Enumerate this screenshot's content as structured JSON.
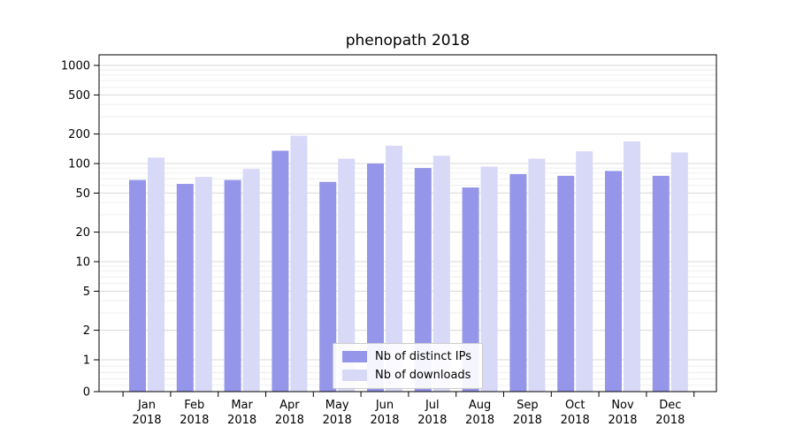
{
  "chart_data": {
    "type": "bar",
    "title": "phenopath 2018",
    "categories": [
      "Jan",
      "Feb",
      "Mar",
      "Apr",
      "May",
      "Jun",
      "Jul",
      "Aug",
      "Sep",
      "Oct",
      "Nov",
      "Dec"
    ],
    "year_label": "2018",
    "series": [
      {
        "name": "Nb of distinct IPs",
        "color": "#9595ea",
        "values": [
          68,
          62,
          68,
          135,
          65,
          100,
          90,
          57,
          78,
          75,
          84,
          75
        ]
      },
      {
        "name": "Nb of downloads",
        "color": "#d8d8f7",
        "values": [
          115,
          73,
          88,
          192,
          112,
          152,
          120,
          93,
          112,
          133,
          168,
          130
        ]
      }
    ],
    "yscale": "symlog",
    "yticks": [
      0,
      1,
      2,
      5,
      10,
      20,
      50,
      100,
      200,
      500,
      1000
    ],
    "ylim": [
      0,
      1300
    ],
    "grid": true,
    "legend_position": "lower center"
  }
}
